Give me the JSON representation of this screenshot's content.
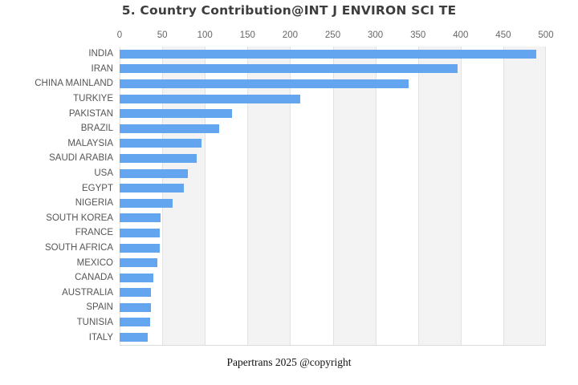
{
  "title": "5. Country Contribution@INT J ENVIRON SCI TE",
  "footer": "Papertrans 2025 @copyright",
  "colors": {
    "bar": "#64a5f0",
    "band_gray": "#f3f3f3",
    "band_white": "#ffffff",
    "gridline": "#e2e2e2",
    "title_text": "#3d3d3d",
    "tick_text": "#666666",
    "category_text": "#555555",
    "footer_text": "#111111"
  },
  "chart_data": {
    "type": "bar",
    "orientation": "horizontal",
    "title": "5. Country Contribution@INT J ENVIRON SCI TE",
    "xlabel": "",
    "ylabel": "",
    "xlim": [
      0,
      500
    ],
    "xticks": [
      0,
      50,
      100,
      150,
      200,
      250,
      300,
      350,
      400,
      450,
      500
    ],
    "grid": "vertical gridlines with alternating white/gray column bands",
    "legend": "none",
    "categories": [
      "INDIA",
      "IRAN",
      "CHINA MAINLAND",
      "TURKIYE",
      "PAKISTAN",
      "BRAZIL",
      "MALAYSIA",
      "SAUDI ARABIA",
      "USA",
      "EGYPT",
      "NIGERIA",
      "SOUTH KOREA",
      "FRANCE",
      "SOUTH AFRICA",
      "MEXICO",
      "CANADA",
      "AUSTRALIA",
      "SPAIN",
      "TUNISIA",
      "ITALY"
    ],
    "values": [
      489,
      396,
      339,
      212,
      132,
      117,
      96,
      90,
      80,
      75,
      62,
      48,
      47,
      47,
      44,
      40,
      37,
      37,
      36,
      33
    ]
  }
}
